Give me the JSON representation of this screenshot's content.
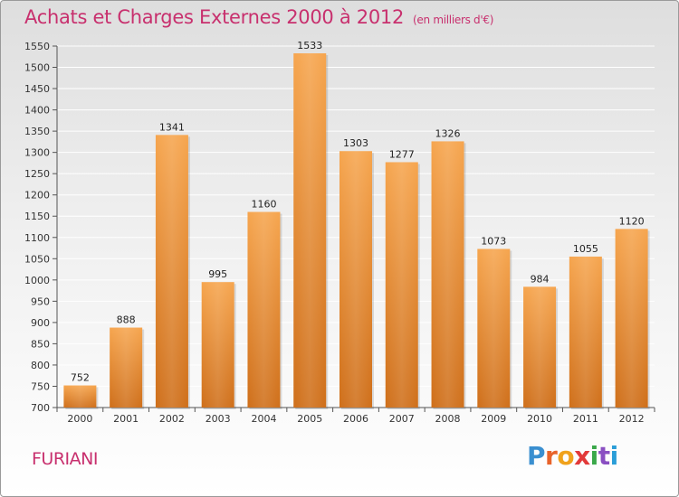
{
  "header": {
    "title": "Achats et Charges Externes 2000 à 2012",
    "subtitle": "(en milliers d'€)"
  },
  "footer": {
    "commune": "FURIANI",
    "logo_text": "Proxiti"
  },
  "colors": {
    "title": "#c8306e",
    "bar_top": "#f6a54e",
    "bar_bottom": "#cf6f1a",
    "grid": "#ffffff"
  },
  "chart_data": {
    "type": "bar",
    "title": "Achats et Charges Externes 2000 à 2012",
    "subtitle": "(en milliers d'€)",
    "categories": [
      "2000",
      "2001",
      "2002",
      "2003",
      "2004",
      "2005",
      "2006",
      "2007",
      "2008",
      "2009",
      "2010",
      "2011",
      "2012"
    ],
    "values": [
      752,
      888,
      1341,
      995,
      1160,
      1533,
      1303,
      1277,
      1326,
      1073,
      984,
      1055,
      1120
    ],
    "ylim": [
      700,
      1550
    ],
    "yticks": [
      700,
      750,
      800,
      850,
      900,
      950,
      1000,
      1050,
      1100,
      1150,
      1200,
      1250,
      1300,
      1350,
      1400,
      1450,
      1500,
      1550
    ],
    "grid": true,
    "data_labels": true
  }
}
